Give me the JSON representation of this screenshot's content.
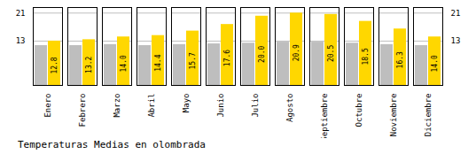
{
  "chart_data": {
    "type": "bar",
    "title": "Temperaturas Medias en olombrada",
    "categories": [
      "Enero",
      "Febrero",
      "Marzo",
      "Abril",
      "Mayo",
      "Junio",
      "Julio",
      "Agosto",
      "Septiembre",
      "Octubre",
      "Noviembre",
      "Diciembre"
    ],
    "series": [
      {
        "color": "#BEBEBE",
        "values": [
          11.5,
          11.5,
          11.8,
          11.5,
          11.8,
          12.0,
          12.2,
          12.5,
          12.5,
          12.2,
          11.8,
          11.5
        ]
      },
      {
        "color": "#FFD700",
        "values": [
          12.8,
          13.2,
          14.0,
          14.4,
          15.7,
          17.6,
          20.0,
          20.9,
          20.5,
          18.5,
          16.3,
          14.0
        ],
        "data_labels": true,
        "value_labels": [
          "12.8",
          "13.2",
          "14.0",
          "14.4",
          "15.7",
          "17.6",
          "20.0",
          "20.9",
          "20.5",
          "18.5",
          "16.3",
          "14.0"
        ]
      }
    ],
    "ylim": [
      0,
      22.5
    ],
    "yticks": [
      12.8,
      20.9
    ],
    "grid": true
  }
}
